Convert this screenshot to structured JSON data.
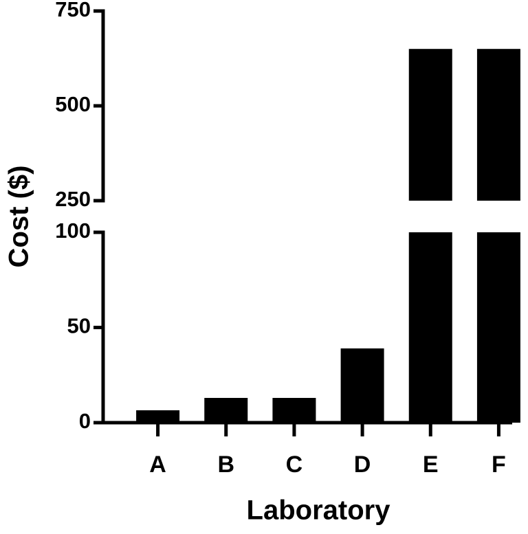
{
  "chart_data": {
    "type": "bar",
    "x_label": "Laboratory",
    "y_label": "Cost ($)",
    "categories": [
      "A",
      "B",
      "C",
      "D",
      "E",
      "F"
    ],
    "values": [
      6.5,
      13,
      13,
      39,
      650,
      650
    ],
    "color": "#000000",
    "ylim": [
      0,
      750
    ],
    "ybreak": [
      100,
      250
    ],
    "yticks": [
      0,
      50,
      100,
      250,
      500,
      750
    ]
  }
}
